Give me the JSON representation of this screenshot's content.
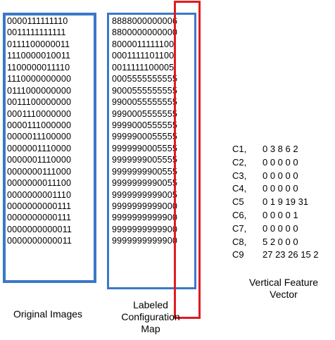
{
  "original_images": {
    "rows": [
      "0000111111110",
      "0011111111111",
      "0111100000011",
      "1110000010011",
      "1100000011110",
      "1110000000000",
      "0111000000000",
      "0011100000000",
      "0001110000000",
      "0000111000000",
      "0000011100000",
      "0000001110000",
      "0000001110000",
      "0000000111000",
      "0000000011100",
      "0000000001110",
      "0000000000111",
      "0000000000111",
      "0000000000011",
      "0000000000011"
    ],
    "caption": "Original Images"
  },
  "labeled_map": {
    "rows": [
      "8888000000006",
      "8800000000000",
      "8000011111100",
      "0001111101100",
      "0011111100005",
      "0005555555555",
      "9000555555555",
      "9900055555555",
      "9990005555555",
      "9999000555555",
      "9999900055555",
      "9999990005555",
      "9999999005555",
      "9999999900555",
      "9999999990055",
      "9999999999005",
      "9999999999000",
      "9999999999900",
      "9999999999900",
      "9999999999900"
    ],
    "caption_lines": [
      "Labeled",
      "Configuration",
      "Map"
    ]
  },
  "feature_vector": {
    "rows": [
      {
        "label": "C1,",
        "values": "0 3 8 6 2"
      },
      {
        "label": "C2,",
        "values": "0 0 0 0 0"
      },
      {
        "label": "C3,",
        "values": "0 0 0 0 0"
      },
      {
        "label": "C4,",
        "values": "0 0 0 0 0"
      },
      {
        "label": "C5",
        "values": "0 1 9 19 31"
      },
      {
        "label": "C6,",
        "values": "0 0 0 0 1"
      },
      {
        "label": "C7,",
        "values": "0 0 0 0 0"
      },
      {
        "label": "C8,",
        "values": "5 2 0 0 0"
      },
      {
        "label": "C9",
        "values": "27 23 26 15 2"
      }
    ],
    "caption_lines": [
      "Vertical Feature",
      "Vector"
    ]
  },
  "colors": {
    "box_border": "#3a78c8",
    "highlight_border": "#e11b22"
  }
}
